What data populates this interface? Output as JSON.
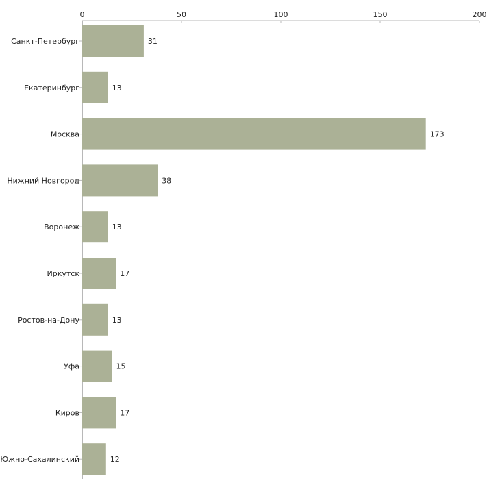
{
  "chart_data": {
    "type": "bar",
    "orientation": "horizontal",
    "title": "",
    "xlabel": "",
    "ylabel": "",
    "xlim": [
      0,
      200
    ],
    "x_ticks": [
      "0",
      "50",
      "100",
      "150",
      "200"
    ],
    "categories": [
      "Санкт-Петербург",
      "Екатеринбург",
      "Москва",
      "Нижний Новгород",
      "Воронеж",
      "Иркутск",
      "Ростов-на-Дону",
      "Уфа",
      "Киров",
      "Южно-Сахалинский"
    ],
    "values": [
      31,
      13,
      173,
      38,
      13,
      17,
      13,
      15,
      17,
      12
    ],
    "value_labels": [
      "31",
      "13",
      "173",
      "38",
      "13",
      "17",
      "13",
      "15",
      "17",
      "12"
    ],
    "grid": false,
    "legend": "none",
    "bar_color": "#abb196",
    "axis_color": "#b8b8b8"
  }
}
